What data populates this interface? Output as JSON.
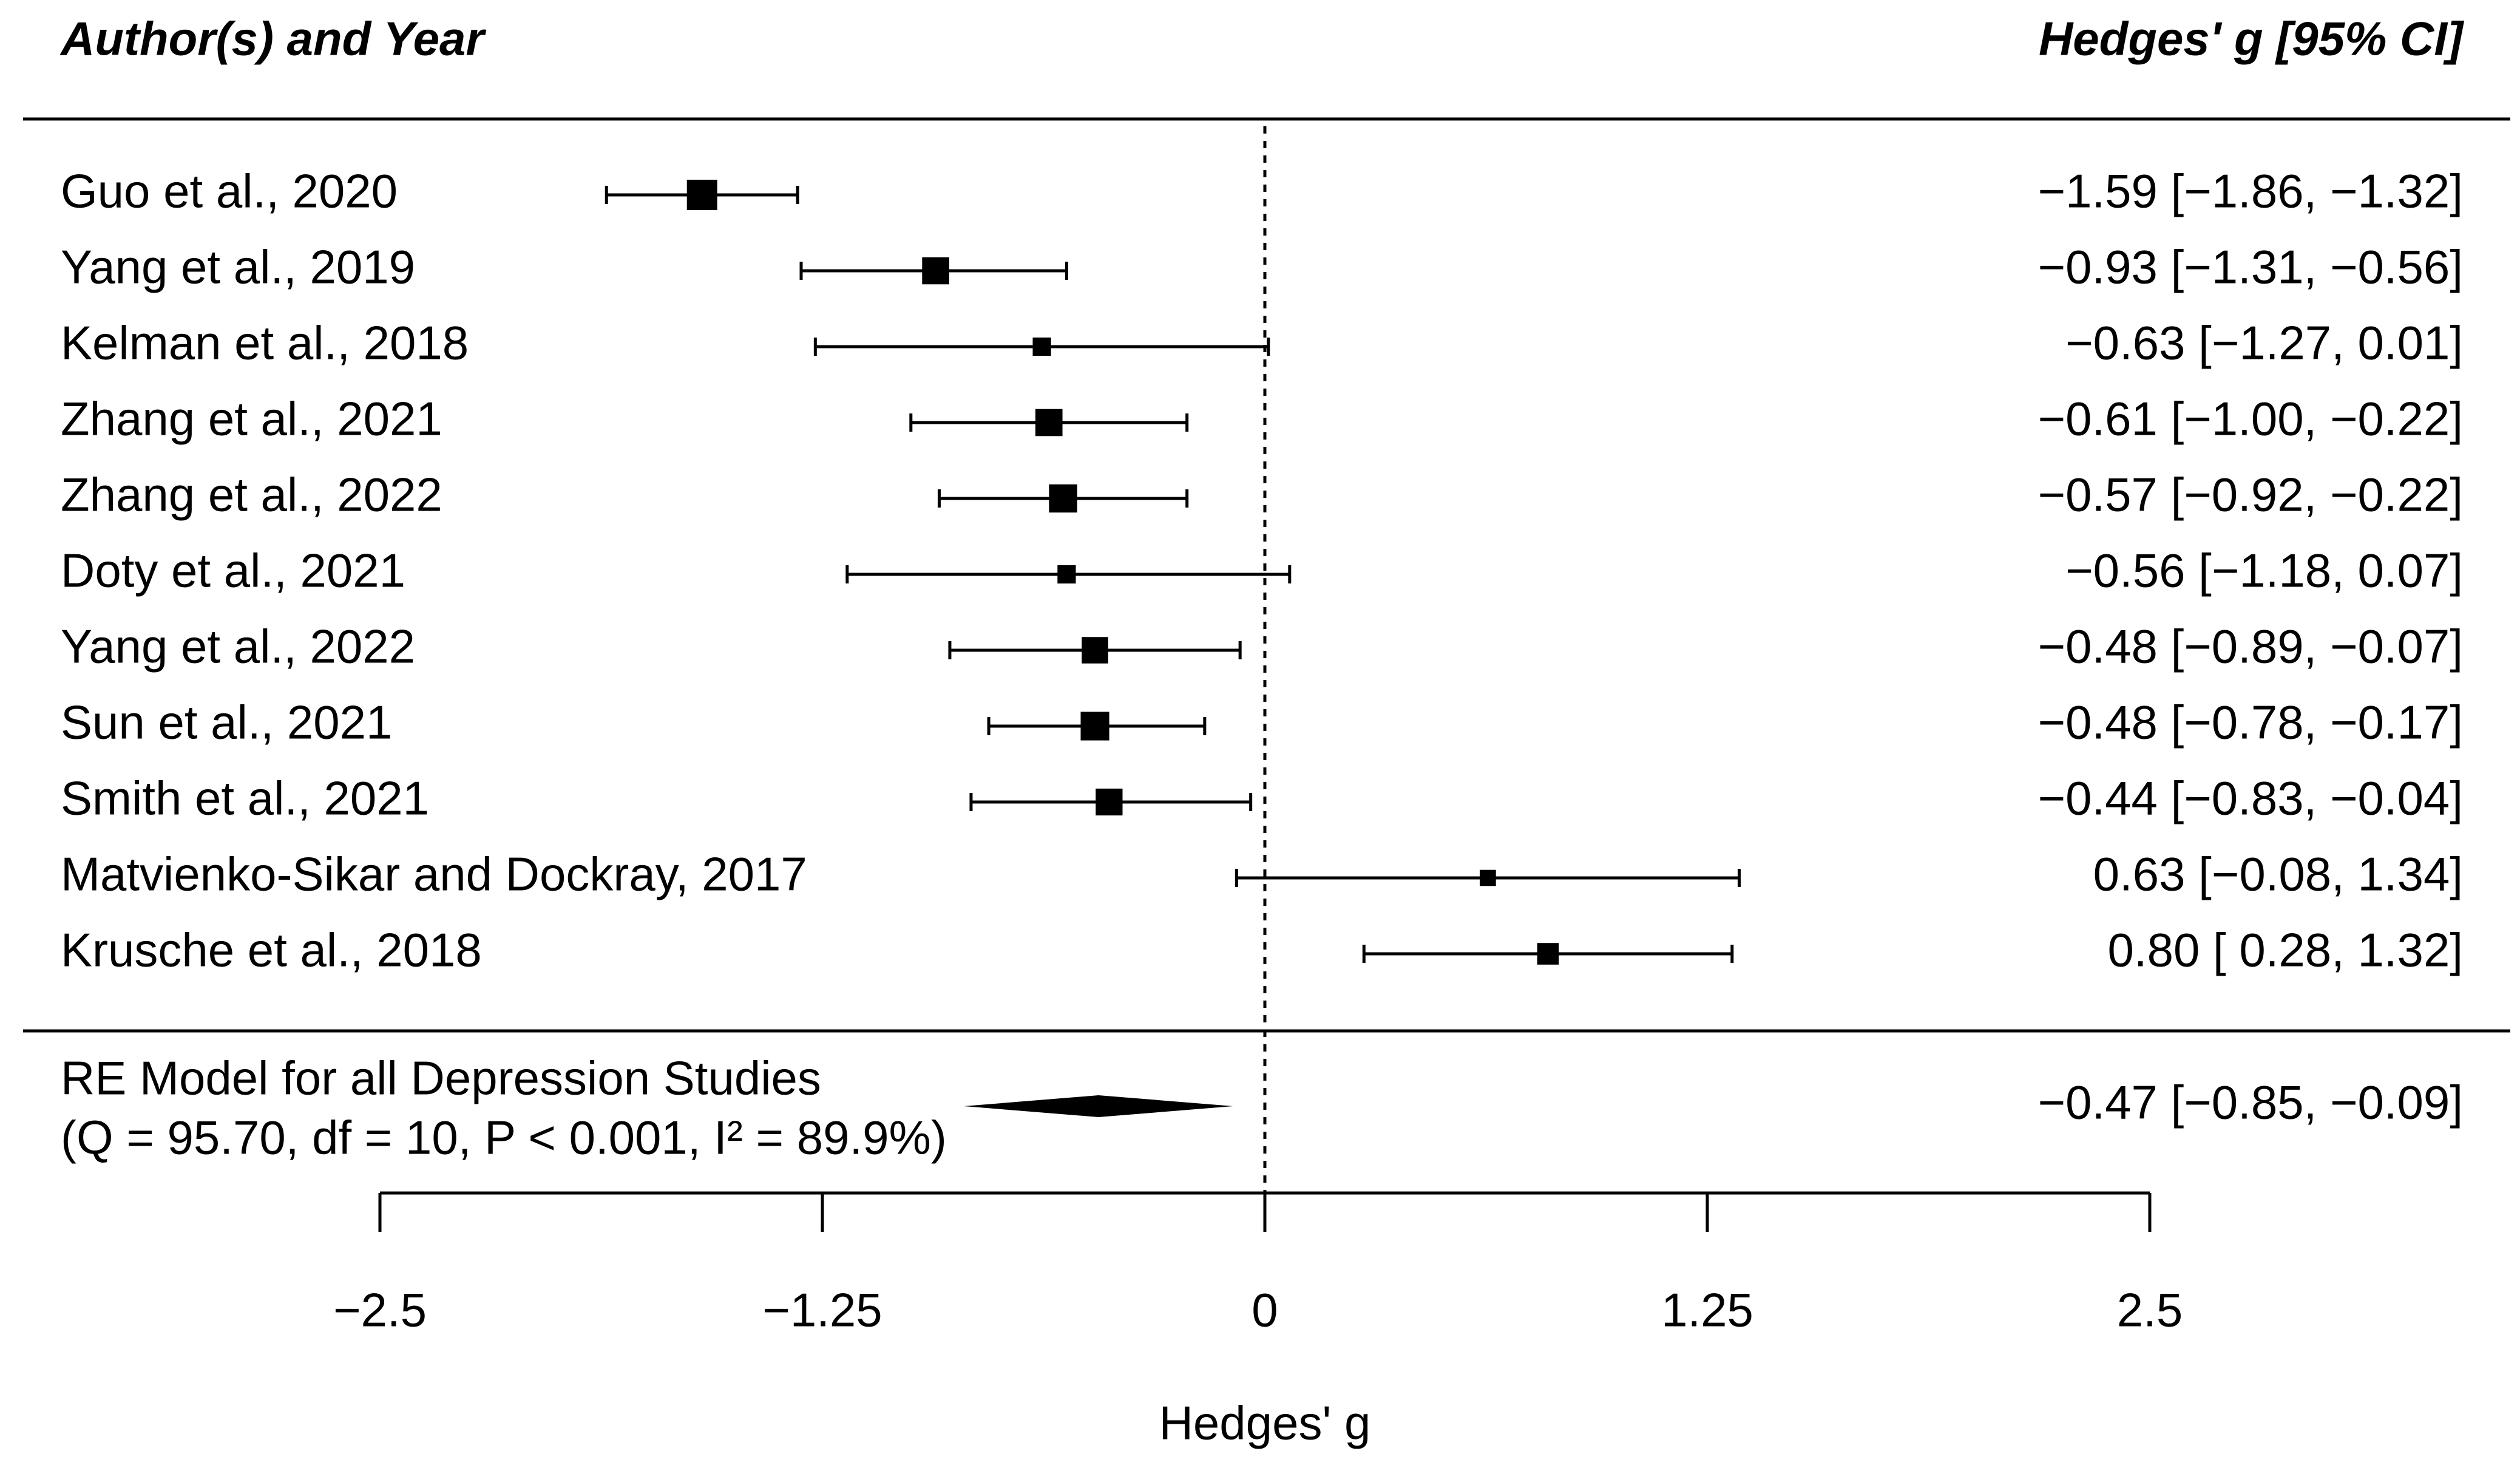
{
  "chart_data": {
    "type": "forest",
    "left_header": "Author(s) and Year",
    "right_header": "Hedges' g [95% CI]",
    "xlabel": "Hedges' g",
    "xlim": [
      -2.5,
      2.5
    ],
    "ticks": [
      -2.5,
      -1.25,
      0,
      1.25,
      2.5
    ],
    "tick_labels": [
      "−2.5",
      "−1.25",
      "0",
      "1.25",
      "2.5"
    ],
    "reference_line": 0,
    "studies": [
      {
        "label": "Guo et al., 2020",
        "g": -1.59,
        "lo": -1.86,
        "hi": -1.32,
        "ci_text": "−1.59 [−1.86, −1.32]",
        "weight": 1.0
      },
      {
        "label": "Yang et al., 2019",
        "g": -0.93,
        "lo": -1.31,
        "hi": -0.56,
        "ci_text": "−0.93 [−1.31, −0.56]",
        "weight": 0.85
      },
      {
        "label": "Kelman et al., 2018",
        "g": -0.63,
        "lo": -1.27,
        "hi": 0.01,
        "ci_text": "−0.63 [−1.27,  0.01]",
        "weight": 0.45
      },
      {
        "label": "Zhang et al., 2021",
        "g": -0.61,
        "lo": -1.0,
        "hi": -0.22,
        "ci_text": "−0.61 [−1.00, −0.22]",
        "weight": 0.85
      },
      {
        "label": "Zhang et al., 2022",
        "g": -0.57,
        "lo": -0.92,
        "hi": -0.22,
        "ci_text": "−0.57 [−0.92, −0.22]",
        "weight": 0.9
      },
      {
        "label": "Doty et al., 2021",
        "g": -0.56,
        "lo": -1.18,
        "hi": 0.07,
        "ci_text": "−0.56 [−1.18,  0.07]",
        "weight": 0.45
      },
      {
        "label": "Yang et al., 2022",
        "g": -0.48,
        "lo": -0.89,
        "hi": -0.07,
        "ci_text": "−0.48 [−0.89, −0.07]",
        "weight": 0.82
      },
      {
        "label": "Sun et al., 2021",
        "g": -0.48,
        "lo": -0.78,
        "hi": -0.17,
        "ci_text": "−0.48 [−0.78, −0.17]",
        "weight": 0.92
      },
      {
        "label": "Smith et al., 2021",
        "g": -0.44,
        "lo": -0.83,
        "hi": -0.04,
        "ci_text": "−0.44 [−0.83, −0.04]",
        "weight": 0.84
      },
      {
        "label": "Matvienko-Sikar and Dockray, 2017",
        "g": 0.63,
        "lo": -0.08,
        "hi": 1.34,
        "ci_text": "0.63 [−0.08,  1.34]",
        "weight": 0.35
      },
      {
        "label": "Krusche et al., 2018",
        "g": 0.8,
        "lo": 0.28,
        "hi": 1.32,
        "ci_text": "0.80 [ 0.28,  1.32]",
        "weight": 0.6
      }
    ],
    "summary": {
      "label_line1": "RE Model for all Depression Studies",
      "label_line2": "(Q = 95.70, df = 10, P < 0.001, I² = 89.9%)",
      "g": -0.47,
      "lo": -0.85,
      "hi": -0.09,
      "ci_text": "−0.47 [−0.85, −0.09]"
    }
  }
}
